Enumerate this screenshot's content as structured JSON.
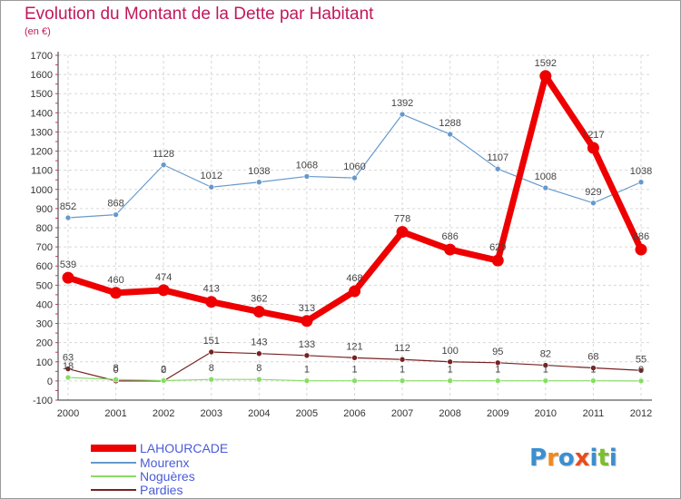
{
  "header": {
    "title": "Evolution du Montant de la Dette par Habitant",
    "unit": "(en €)"
  },
  "logo": {
    "text": "Proxiti",
    "colors": [
      "#3a8fd0",
      "#f08a1c",
      "#3a8fd0",
      "#e84c1c",
      "#3a8fd0",
      "#7bbf2a",
      "#3a8fd0"
    ]
  },
  "chart_data": {
    "type": "line",
    "title": "Evolution du Montant de la Dette par Habitant",
    "ylabel": "(en €)",
    "xlabel": "",
    "categories": [
      "2000",
      "2001",
      "2002",
      "2003",
      "2004",
      "2005",
      "2006",
      "2007",
      "2008",
      "2009",
      "2010",
      "2011",
      "2012"
    ],
    "ylim": [
      -100,
      1700
    ],
    "yticks": [
      "-100",
      "0",
      "100",
      "200",
      "300",
      "400",
      "500",
      "600",
      "700",
      "800",
      "900",
      "1000",
      "1100",
      "1200",
      "1300",
      "1400",
      "1500",
      "1600",
      "1700"
    ],
    "grid": true,
    "legend_position": "bottom-left",
    "series": [
      {
        "name": "LAHOURCADE",
        "color": "#ee0000",
        "emphasis": true,
        "values": [
          539,
          460,
          474,
          413,
          362,
          313,
          468,
          778,
          686,
          629,
          1592,
          1217,
          686
        ],
        "labels": [
          "539",
          "460",
          "474",
          "413",
          "362",
          "313",
          "468",
          "778",
          "686",
          "629",
          "1592",
          "1217",
          "686"
        ]
      },
      {
        "name": "Mourenx",
        "color": "#6699cc",
        "values": [
          852,
          868,
          1128,
          1012,
          1038,
          1068,
          1060,
          1392,
          1288,
          1107,
          1008,
          929,
          1038
        ],
        "labels": [
          "852",
          "868",
          "1128",
          "1012",
          "1038",
          "1068",
          "1060",
          "1392",
          "1288",
          "1107",
          "1008",
          "929",
          "1038"
        ]
      },
      {
        "name": "Noguères",
        "color": "#88dd66",
        "values": [
          18,
          8,
          2,
          8,
          8,
          1,
          1,
          1,
          1,
          1,
          1,
          1,
          0
        ],
        "labels": [
          "18",
          "8",
          "2",
          "8",
          "8",
          "1",
          "1",
          "1",
          "1",
          "1",
          "1",
          "1",
          "0"
        ]
      },
      {
        "name": "Pardies",
        "color": "#772222",
        "values": [
          63,
          0,
          0,
          151,
          143,
          133,
          121,
          112,
          100,
          95,
          82,
          68,
          55
        ],
        "labels": [
          "63",
          "0",
          "0",
          "151",
          "143",
          "133",
          "121",
          "112",
          "100",
          "95",
          "82",
          "68",
          "55"
        ]
      }
    ]
  }
}
